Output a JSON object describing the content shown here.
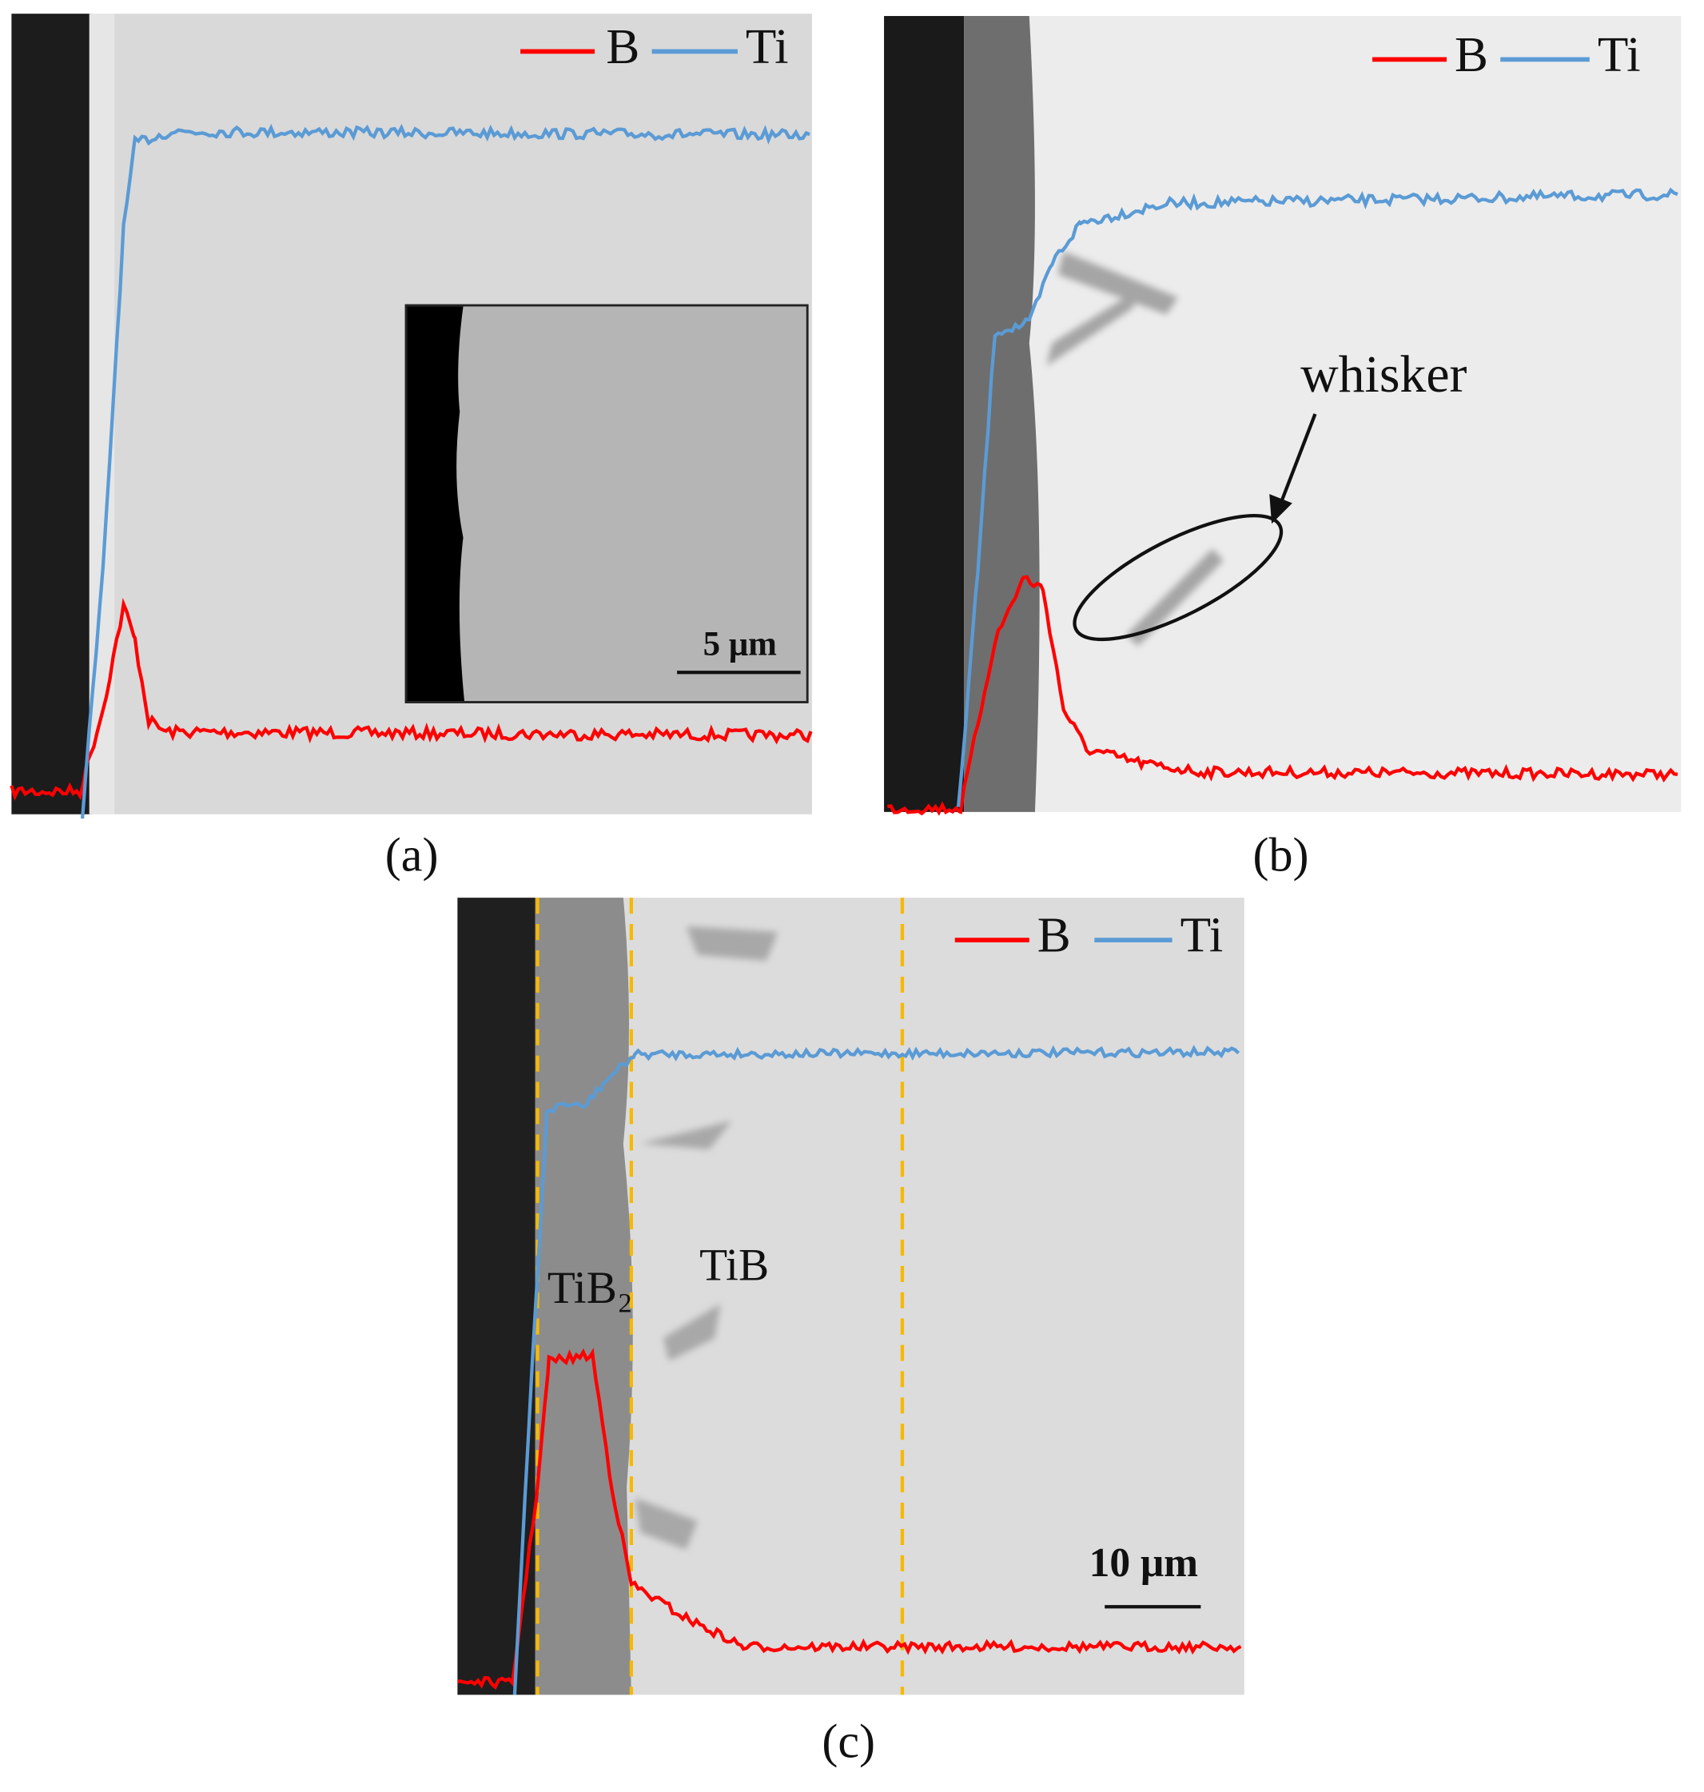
{
  "panels": [
    {
      "label": "(a)",
      "legend": [
        "B",
        "Ti"
      ],
      "inset_scale": "5 μm"
    },
    {
      "label": "(b)",
      "legend": [
        "B",
        "Ti"
      ],
      "annotation": "whisker"
    },
    {
      "label": "(c)",
      "legend": [
        "B",
        "Ti"
      ],
      "phases": [
        "TiB₂",
        "TiB"
      ],
      "scale_bar": "10 μm"
    }
  ]
}
